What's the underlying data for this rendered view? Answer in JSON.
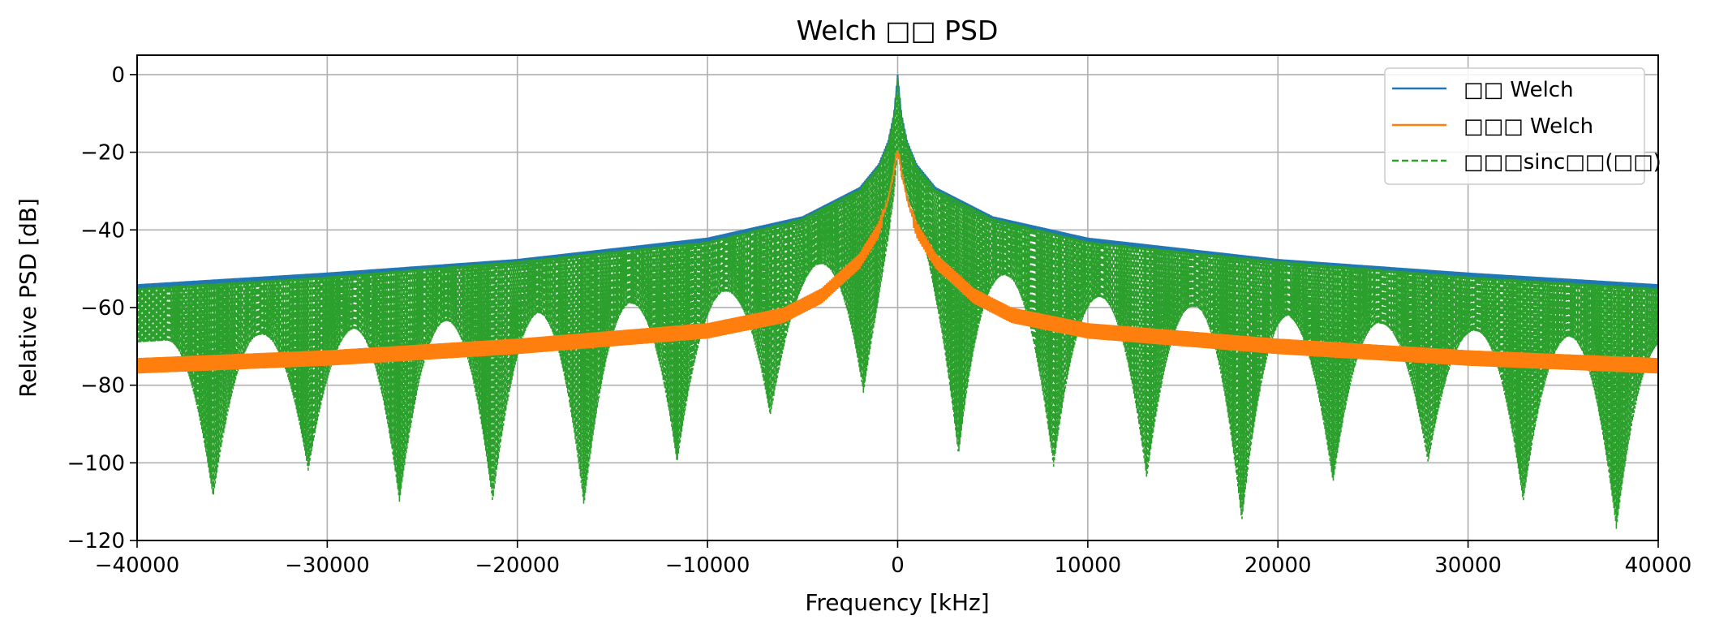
{
  "chart_data": {
    "type": "line",
    "title": "Welch □□ PSD",
    "xlabel": "Frequency [kHz]",
    "ylabel": "Relative PSD [dB]",
    "xlim": [
      -40000,
      40000
    ],
    "ylim": [
      -120,
      5
    ],
    "x_ticks": [
      -40000,
      -30000,
      -20000,
      -10000,
      0,
      10000,
      20000,
      30000,
      40000
    ],
    "x_tick_labels": [
      "−40000",
      "−30000",
      "−20000",
      "−10000",
      "0",
      "10000",
      "20000",
      "30000",
      "40000"
    ],
    "y_ticks": [
      0,
      -20,
      -40,
      -60,
      -80,
      -100,
      -120
    ],
    "y_tick_labels": [
      "0",
      "−20",
      "−40",
      "−60",
      "−80",
      "−100",
      "−120"
    ],
    "grid": true,
    "legend_position": "top-right",
    "series": [
      {
        "name": "□□ Welch",
        "color": "#1f77b4",
        "style": "solid",
        "x": [
          -40000,
          -30000,
          -20000,
          -10000,
          -5000,
          -2000,
          -1000,
          -500,
          -200,
          0,
          200,
          500,
          1000,
          2000,
          5000,
          10000,
          20000,
          30000,
          40000
        ],
        "y": [
          -54,
          -51,
          -47.5,
          -42,
          -36.5,
          -29,
          -23,
          -17,
          -10,
          0,
          -10,
          -17,
          -23,
          -29,
          -36.5,
          -42,
          -47.5,
          -51,
          -54
        ]
      },
      {
        "name": "□□□ Welch",
        "color": "#ff7f0e",
        "style": "solid",
        "x": [
          -40000,
          -30000,
          -20000,
          -10000,
          -6000,
          -4000,
          -2000,
          -1000,
          -500,
          -200,
          -100,
          0,
          100,
          200,
          500,
          1000,
          2000,
          4000,
          6000,
          10000,
          20000,
          30000,
          40000
        ],
        "y": [
          -75,
          -73,
          -70,
          -66,
          -62,
          -57,
          -48,
          -40,
          -32,
          -25,
          -21,
          -20,
          -21,
          -25,
          -32,
          -40,
          -48,
          -57,
          -62,
          -66,
          -70,
          -73,
          -75
        ]
      },
      {
        "name": "□□□sinc□□(□□)",
        "color": "#2ca02c",
        "style": "dashed",
        "envelope_x": [
          -40000,
          -30000,
          -20000,
          -10000,
          -5000,
          -2000,
          -1000,
          -500,
          -200,
          0,
          200,
          500,
          1000,
          2000,
          5000,
          10000,
          20000,
          30000,
          40000
        ],
        "envelope_y": [
          -55,
          -52,
          -48,
          -43,
          -37,
          -29.5,
          -23.5,
          -17.5,
          -10.5,
          -1,
          -10.5,
          -17.5,
          -23.5,
          -29.5,
          -37,
          -43,
          -48,
          -52,
          -55
        ],
        "nulls_x": [
          -36000,
          -31000,
          -26200,
          -21300,
          -16500,
          -11600,
          -6700,
          -1800,
          3200,
          8200,
          13100,
          18100,
          22900,
          27900,
          32900,
          37800
        ],
        "nulls_y": [
          -109,
          -102,
          -110,
          -110,
          -111,
          -100,
          -88,
          -82,
          -98,
          -101,
          -104,
          -115,
          -105,
          -100,
          -110,
          -117
        ]
      }
    ]
  }
}
